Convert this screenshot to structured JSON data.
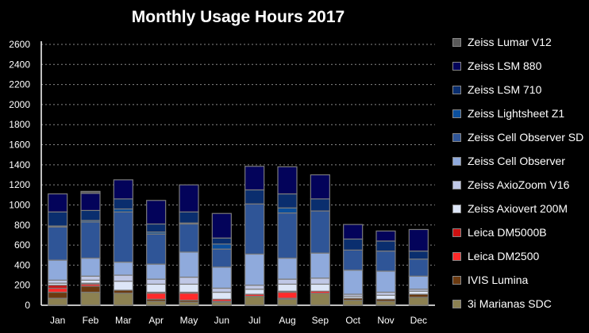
{
  "chart_data": {
    "type": "bar",
    "stacked": true,
    "title": "Monthly Usage Hours 2017",
    "xlabel": "",
    "ylabel": "",
    "ylim": [
      0,
      2600
    ],
    "yticks": [
      "0",
      "200",
      "400",
      "600",
      "800",
      "1000",
      "1200",
      "1400",
      "1600",
      "1800",
      "2000",
      "2200",
      "2400",
      "2600"
    ],
    "grid": true,
    "legend_position": "right",
    "categories": [
      "Jan",
      "Feb",
      "Mar",
      "Apr",
      "May",
      "Jun",
      "Jul",
      "Aug",
      "Sep",
      "Oct",
      "Nov",
      "Dec"
    ],
    "series": [
      {
        "name": "3i Marianas SDC",
        "color": "#8c8152",
        "values": [
          70,
          130,
          120,
          40,
          30,
          30,
          90,
          60,
          120,
          50,
          40,
          80
        ]
      },
      {
        "name": "IVIS Lumina",
        "color": "#6b3a10",
        "values": [
          60,
          60,
          30,
          20,
          20,
          10,
          0,
          10,
          0,
          20,
          20,
          30
        ]
      },
      {
        "name": "Leica DM2500",
        "color": "#ff2a2a",
        "values": [
          40,
          20,
          0,
          60,
          70,
          20,
          20,
          60,
          20,
          0,
          0,
          0
        ]
      },
      {
        "name": "Leica DM5000B",
        "color": "#cc1111",
        "values": [
          30,
          10,
          0,
          10,
          10,
          0,
          0,
          10,
          0,
          0,
          0,
          0
        ]
      },
      {
        "name": "Zeiss Axiovert 200M",
        "color": "#dde6f7",
        "values": [
          20,
          30,
          90,
          80,
          80,
          70,
          50,
          70,
          70,
          20,
          40,
          30
        ]
      },
      {
        "name": "Zeiss AxioZoom V16",
        "color": "#c0c8e6",
        "values": [
          30,
          40,
          60,
          50,
          70,
          40,
          40,
          50,
          60,
          20,
          30,
          20
        ]
      },
      {
        "name": "Zeiss Cell Observer",
        "color": "#8faadc",
        "values": [
          200,
          180,
          130,
          150,
          250,
          210,
          310,
          210,
          250,
          240,
          210,
          130
        ]
      },
      {
        "name": "Zeiss Cell Observer SD",
        "color": "#2f5597",
        "values": [
          330,
          360,
          500,
          300,
          280,
          180,
          500,
          450,
          420,
          200,
          200,
          170
        ]
      },
      {
        "name": "Zeiss Lightsheet Z1",
        "color": "#0b4f9c",
        "values": [
          10,
          15,
          30,
          20,
          10,
          50,
          0,
          50,
          0,
          0,
          0,
          0
        ]
      },
      {
        "name": "Zeiss LSM 710",
        "color": "#0a2e6e",
        "values": [
          140,
          100,
          100,
          80,
          110,
          60,
          140,
          140,
          120,
          110,
          100,
          80
        ]
      },
      {
        "name": "Zeiss LSM 880",
        "color": "#03035a",
        "values": [
          180,
          170,
          190,
          235,
          270,
          245,
          235,
          270,
          240,
          145,
          100,
          215
        ]
      },
      {
        "name": "Zeiss Lumar V12",
        "color": "#595959",
        "values": [
          0,
          20,
          0,
          0,
          0,
          0,
          0,
          0,
          0,
          0,
          0,
          0
        ]
      }
    ]
  }
}
